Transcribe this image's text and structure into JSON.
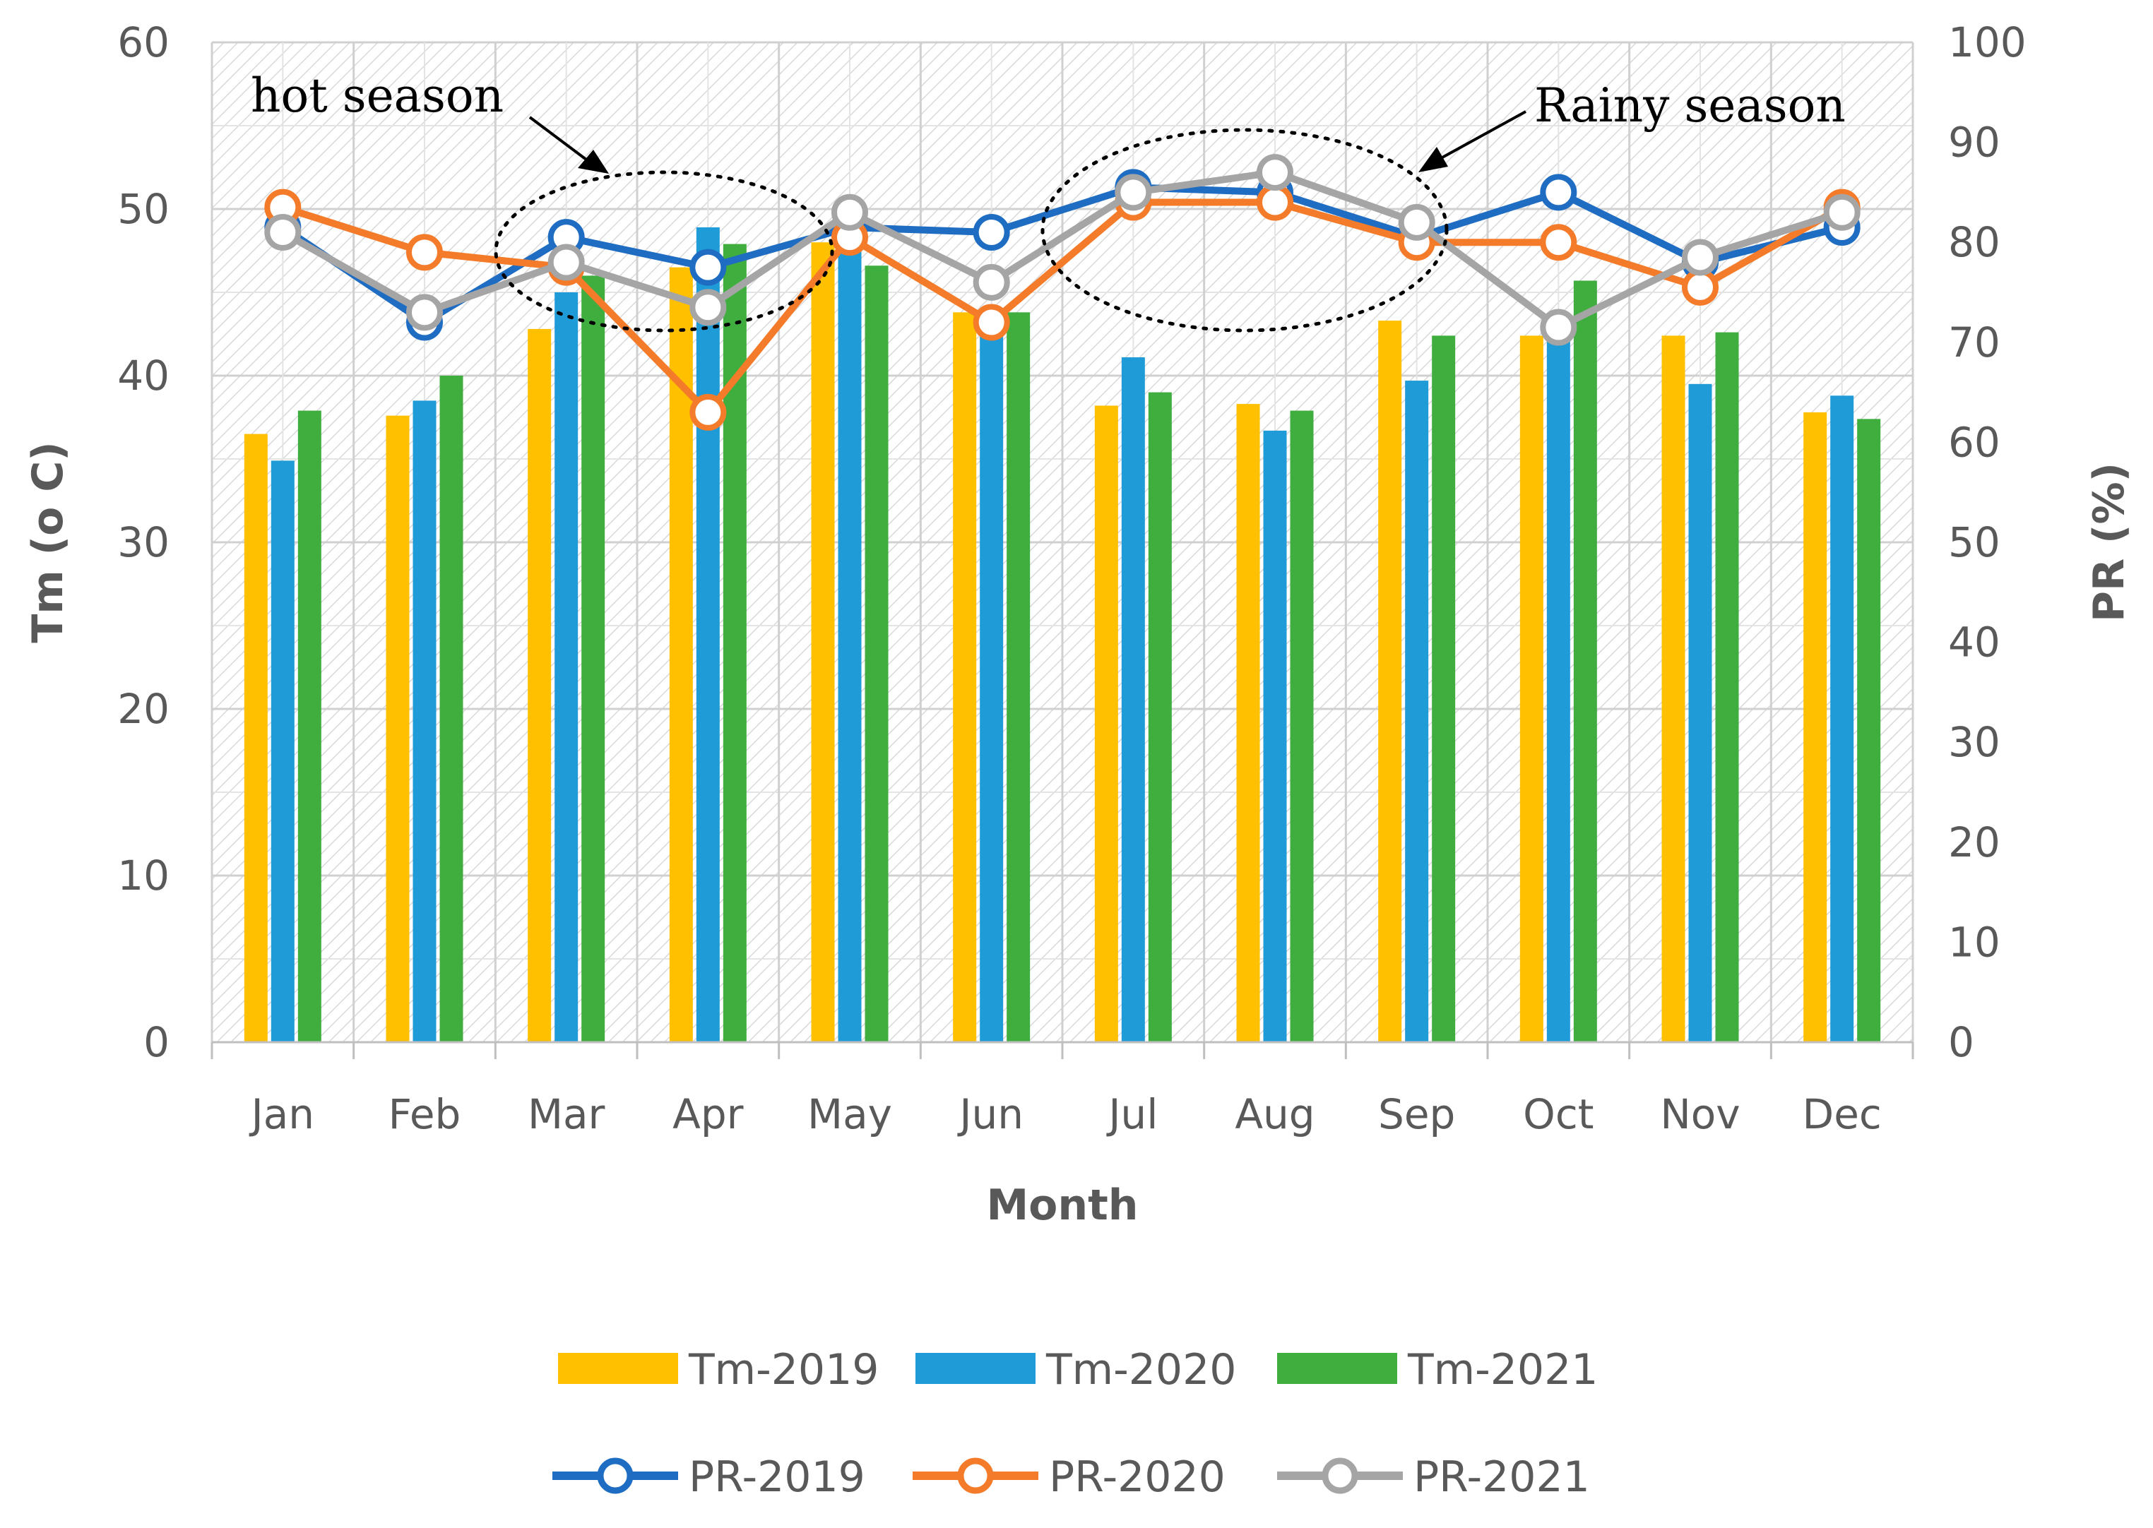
{
  "chart_data": {
    "type": "bar",
    "categories": [
      "Jan",
      "Feb",
      "Mar",
      "Apr",
      "May",
      "Jun",
      "Jul",
      "Aug",
      "Sep",
      "Oct",
      "Nov",
      "Dec"
    ],
    "xlabel": "Month",
    "ylabel": "Tm (o C)",
    "y2label": "PR (%)",
    "ylim": [
      0,
      60
    ],
    "y2lim": [
      0,
      100
    ],
    "yticks": [
      "0",
      "10",
      "20",
      "30",
      "40",
      "50",
      "60"
    ],
    "y2ticks": [
      "0",
      "10",
      "20",
      "30",
      "40",
      "50",
      "60",
      "70",
      "80",
      "90",
      "100"
    ],
    "bar_series": [
      {
        "name": "Tm-2019",
        "color": "#FFC000",
        "values": [
          36.5,
          37.6,
          42.8,
          46.5,
          48.0,
          43.8,
          38.2,
          38.3,
          43.3,
          42.4,
          42.4,
          37.8
        ]
      },
      {
        "name": "Tm-2020",
        "color": "#1F9BD7",
        "values": [
          34.9,
          38.5,
          45.0,
          48.9,
          47.6,
          43.5,
          41.1,
          36.7,
          39.7,
          43.0,
          39.5,
          38.8
        ]
      },
      {
        "name": "Tm-2021",
        "color": "#3FAE3F",
        "values": [
          37.9,
          40.0,
          46.0,
          47.9,
          46.6,
          43.8,
          39.0,
          37.9,
          42.4,
          45.7,
          42.6,
          37.4
        ]
      }
    ],
    "line_series": [
      {
        "name": "PR-2019",
        "color": "#1F6DC2",
        "values": [
          81.5,
          72.0,
          80.5,
          77.5,
          81.5,
          81.0,
          85.5,
          85.0,
          80.5,
          85.0,
          78.0,
          81.5
        ]
      },
      {
        "name": "PR-2020",
        "color": "#F47B29",
        "values": [
          83.5,
          79.0,
          77.5,
          63.0,
          80.5,
          72.0,
          84.0,
          84.0,
          80.0,
          80.0,
          75.5,
          83.5
        ]
      },
      {
        "name": "PR-2021",
        "color": "#A5A5A5",
        "values": [
          81.0,
          73.0,
          78.0,
          73.5,
          83.0,
          76.0,
          85.0,
          87.0,
          82.0,
          71.5,
          78.5,
          83.0
        ]
      }
    ],
    "annotations": [
      {
        "text": "hot season"
      },
      {
        "text": "Rainy season"
      }
    ],
    "legend_position": "bottom"
  }
}
